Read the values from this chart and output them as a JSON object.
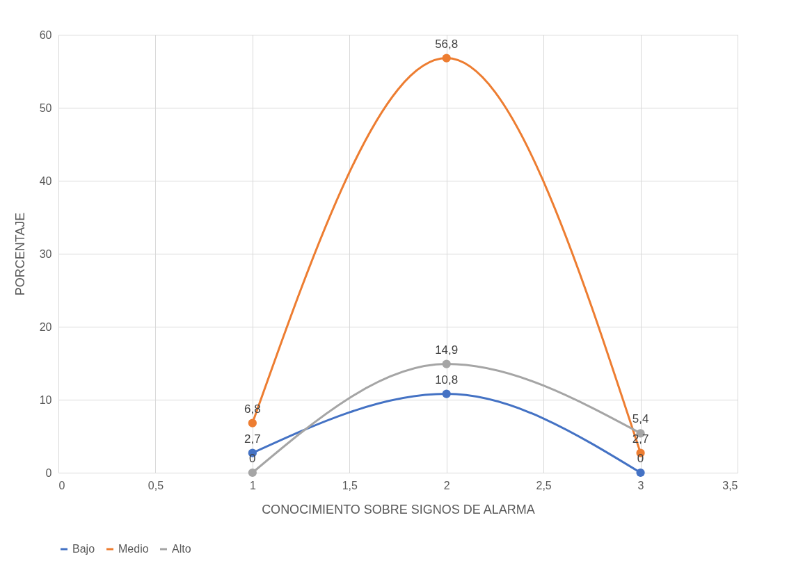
{
  "chart_data": {
    "type": "line",
    "xlabel": "CONOCIMIENTO SOBRE SIGNOS DE ALARMA",
    "ylabel": "PORCENTAJE",
    "x": [
      1,
      2,
      3
    ],
    "series": [
      {
        "name": "Bajo",
        "color": "#4472c4",
        "values": [
          2.7,
          10.8,
          0
        ],
        "value_labels": [
          "2,7",
          "10,8",
          "0"
        ]
      },
      {
        "name": "Medio",
        "color": "#ed7d31",
        "values": [
          6.8,
          56.8,
          2.7
        ],
        "value_labels": [
          "6,8",
          "56,8",
          "2,7"
        ]
      },
      {
        "name": "Alto",
        "color": "#a5a5a5",
        "values": [
          0,
          14.9,
          5.4
        ],
        "value_labels": [
          "0",
          "14,9",
          "5,4"
        ]
      }
    ],
    "xlim": [
      0,
      3.5
    ],
    "xticks": [
      0,
      {
        "value": 0.5,
        "label": "0,5"
      },
      1,
      {
        "value": 1.5,
        "label": "1,5"
      },
      2,
      {
        "value": 2.5,
        "label": "2,5"
      },
      3,
      {
        "value": 3.5,
        "label": "3,5"
      }
    ],
    "ylim": [
      0,
      60
    ],
    "yticks": [
      0,
      10,
      20,
      30,
      40,
      50,
      60
    ],
    "grid": true,
    "legend": "bottom",
    "marker": "circle",
    "line_style": "solid"
  }
}
